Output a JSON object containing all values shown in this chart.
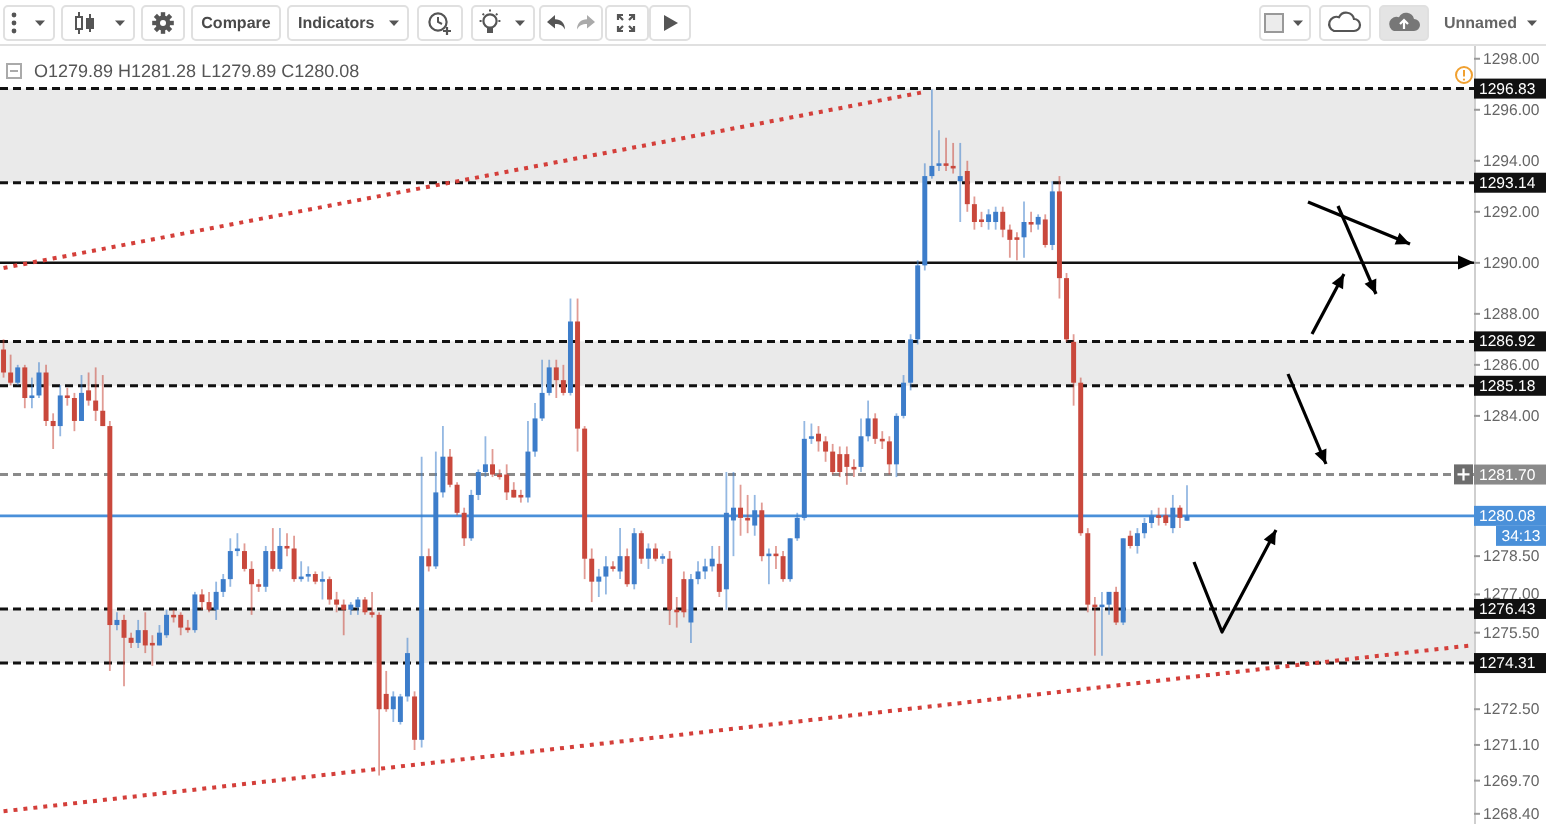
{
  "chart_data": {
    "type": "candlestick",
    "categories": [
      null,
      null,
      null,
      null,
      null,
      null,
      null,
      null,
      null,
      null,
      null,
      null,
      null,
      null,
      null,
      null,
      null,
      null,
      null,
      null,
      null,
      null,
      null,
      null,
      null,
      null,
      null,
      null,
      null,
      null,
      null,
      null,
      null,
      null,
      null,
      null,
      null,
      null,
      null,
      null,
      null,
      null,
      null,
      null,
      null,
      null,
      null,
      null,
      null,
      null,
      null,
      null,
      null,
      null,
      null,
      null,
      null,
      null,
      null,
      null,
      null,
      null,
      null,
      null,
      null,
      null,
      null,
      null,
      null,
      null,
      null,
      null,
      null,
      null,
      null,
      null,
      null,
      null,
      null,
      null,
      null,
      null,
      null,
      null,
      null,
      null,
      null,
      null,
      null,
      null,
      null,
      null,
      null,
      null,
      null,
      null,
      null,
      null,
      null,
      null,
      null,
      null,
      null,
      null,
      null,
      null,
      null,
      null,
      null,
      null,
      null,
      null,
      null,
      null,
      null,
      null,
      null,
      null,
      null,
      null,
      null,
      null,
      null,
      null,
      null,
      null,
      null,
      null,
      null,
      null,
      null,
      null,
      null,
      null,
      null,
      null,
      null,
      null,
      null,
      null,
      null,
      null,
      null,
      null,
      null,
      null,
      null,
      null,
      null,
      null,
      null,
      null,
      null,
      null,
      null,
      null,
      null,
      null,
      null,
      null,
      null,
      null,
      null,
      null,
      null,
      null,
      null,
      null,
      null,
      null,
      null,
      null,
      null,
      null,
      null,
      null,
      null,
      null,
      null,
      null,
      null,
      null,
      null,
      null,
      null,
      null,
      null,
      null,
      null,
      null,
      null,
      null,
      null,
      null,
      null,
      null,
      null,
      null,
      null,
      null,
      null,
      null,
      null,
      null,
      null,
      null,
      null,
      null
    ],
    "ohlc": [
      [
        1286.6,
        1287.0,
        1285.5,
        1285.7
      ],
      [
        1285.7,
        1286.4,
        1285.2,
        1285.3
      ],
      [
        1285.3,
        1286.0,
        1285.2,
        1285.9
      ],
      [
        1285.9,
        1286.0,
        1284.3,
        1284.7
      ],
      [
        1284.7,
        1285.5,
        1284.3,
        1284.8
      ],
      [
        1284.8,
        1286.1,
        1284.7,
        1285.7
      ],
      [
        1285.7,
        1286.0,
        1283.6,
        1283.8
      ],
      [
        1283.8,
        1284.1,
        1282.7,
        1283.6
      ],
      [
        1283.6,
        1285.2,
        1283.2,
        1284.8
      ],
      [
        1284.8,
        1285.1,
        1284.4,
        1284.7
      ],
      [
        1284.7,
        1284.9,
        1283.4,
        1283.8
      ],
      [
        1283.8,
        1285.6,
        1283.8,
        1284.9
      ],
      [
        1285.0,
        1285.7,
        1284.4,
        1284.6
      ],
      [
        1284.6,
        1285.9,
        1283.8,
        1284.2
      ],
      [
        1284.2,
        1285.6,
        1283.6,
        1283.6
      ],
      [
        1283.6,
        1283.8,
        1274.0,
        1275.8
      ],
      [
        1275.8,
        1276.3,
        1275.6,
        1276.0
      ],
      [
        1276.0,
        1276.2,
        1273.4,
        1275.3
      ],
      [
        1275.3,
        1275.5,
        1274.9,
        1275.1
      ],
      [
        1275.1,
        1276.0,
        1274.9,
        1275.6
      ],
      [
        1275.6,
        1276.3,
        1274.7,
        1275.0
      ],
      [
        1275.1,
        1275.4,
        1274.2,
        1275.0
      ],
      [
        1275.0,
        1275.8,
        1275.0,
        1275.5
      ],
      [
        1275.4,
        1276.4,
        1275.3,
        1276.2
      ],
      [
        1276.2,
        1276.4,
        1275.9,
        1276.1
      ],
      [
        1276.2,
        1276.3,
        1275.4,
        1275.7
      ],
      [
        1275.7,
        1276.0,
        1275.5,
        1275.6
      ],
      [
        1275.6,
        1277.1,
        1275.5,
        1277.0
      ],
      [
        1277.0,
        1277.2,
        1276.4,
        1276.7
      ],
      [
        1276.7,
        1277.1,
        1276.3,
        1276.4
      ],
      [
        1276.4,
        1277.5,
        1276.0,
        1277.1
      ],
      [
        1277.1,
        1277.8,
        1276.9,
        1277.6
      ],
      [
        1277.6,
        1279.2,
        1277.3,
        1278.7
      ],
      [
        1278.7,
        1279.4,
        1278.5,
        1278.8
      ],
      [
        1278.7,
        1279.0,
        1277.9,
        1278.0
      ],
      [
        1278.0,
        1278.3,
        1276.2,
        1277.4
      ],
      [
        1277.4,
        1277.6,
        1277.1,
        1277.3
      ],
      [
        1277.3,
        1278.9,
        1277.1,
        1278.7
      ],
      [
        1278.7,
        1279.6,
        1277.9,
        1278.0
      ],
      [
        1278.0,
        1279.6,
        1277.9,
        1278.9
      ],
      [
        1278.9,
        1279.4,
        1278.5,
        1278.8
      ],
      [
        1278.8,
        1279.3,
        1277.5,
        1277.6
      ],
      [
        1277.6,
        1278.3,
        1277.5,
        1277.7
      ],
      [
        1277.7,
        1278.1,
        1277.5,
        1277.8
      ],
      [
        1277.8,
        1277.9,
        1277.4,
        1277.5
      ],
      [
        1277.5,
        1277.9,
        1276.8,
        1277.6
      ],
      [
        1277.6,
        1277.7,
        1276.6,
        1276.8
      ],
      [
        1276.8,
        1277.1,
        1276.3,
        1276.6
      ],
      [
        1276.6,
        1276.8,
        1275.4,
        1276.4
      ],
      [
        1276.4,
        1276.7,
        1276.2,
        1276.6
      ],
      [
        1276.5,
        1276.9,
        1276.2,
        1276.8
      ],
      [
        1276.8,
        1276.9,
        1276.2,
        1276.3
      ],
      [
        1276.3,
        1277.1,
        1276.1,
        1276.2
      ],
      [
        1276.2,
        1276.3,
        1269.9,
        1272.5
      ],
      [
        1273.1,
        1274.0,
        1272.4,
        1272.5
      ],
      [
        1272.5,
        1273.2,
        1272.0,
        1273.0
      ],
      [
        1272.0,
        1273.1,
        1271.9,
        1273.0
      ],
      [
        1273.0,
        1275.3,
        1272.8,
        1274.7
      ],
      [
        1273.0,
        1273.2,
        1270.9,
        1271.3
      ],
      [
        1271.3,
        1282.4,
        1271.0,
        1278.5
      ],
      [
        1278.5,
        1278.8,
        1277.9,
        1278.1
      ],
      [
        1278.1,
        1282.6,
        1278.0,
        1281.0
      ],
      [
        1281.0,
        1283.6,
        1280.8,
        1282.4
      ],
      [
        1282.4,
        1282.7,
        1281.2,
        1281.3
      ],
      [
        1281.3,
        1281.4,
        1280.1,
        1280.2
      ],
      [
        1280.2,
        1280.4,
        1278.9,
        1279.2
      ],
      [
        1279.2,
        1281.1,
        1279.1,
        1280.9
      ],
      [
        1280.9,
        1281.9,
        1280.7,
        1281.8
      ],
      [
        1281.8,
        1283.2,
        1281.6,
        1282.1
      ],
      [
        1282.1,
        1282.7,
        1281.6,
        1281.7
      ],
      [
        1281.7,
        1281.9,
        1281.5,
        1281.6
      ],
      [
        1281.7,
        1282.1,
        1280.7,
        1281.0
      ],
      [
        1281.1,
        1281.4,
        1280.8,
        1280.8
      ],
      [
        1280.9,
        1281.1,
        1280.6,
        1280.8
      ],
      [
        1280.8,
        1283.8,
        1280.6,
        1282.6
      ],
      [
        1282.6,
        1284.5,
        1282.4,
        1283.9
      ],
      [
        1283.9,
        1286.2,
        1283.8,
        1284.9
      ],
      [
        1284.9,
        1286.2,
        1284.8,
        1285.9
      ],
      [
        1285.9,
        1286.2,
        1284.7,
        1285.4
      ],
      [
        1285.4,
        1286.0,
        1284.8,
        1284.9
      ],
      [
        1284.9,
        1288.6,
        1284.8,
        1287.7
      ],
      [
        1287.7,
        1288.6,
        1282.6,
        1283.5
      ],
      [
        1283.5,
        1283.6,
        1277.6,
        1278.4
      ],
      [
        1278.4,
        1278.8,
        1276.7,
        1277.5
      ],
      [
        1277.5,
        1278.0,
        1276.9,
        1277.7
      ],
      [
        1277.7,
        1278.5,
        1277.0,
        1278.1
      ],
      [
        1278.1,
        1278.3,
        1277.9,
        1278.0
      ],
      [
        1277.9,
        1279.6,
        1277.6,
        1278.5
      ],
      [
        1278.5,
        1278.8,
        1277.3,
        1277.4
      ],
      [
        1277.4,
        1279.6,
        1277.2,
        1279.4
      ],
      [
        1279.4,
        1279.5,
        1278.2,
        1278.4
      ],
      [
        1278.4,
        1279.0,
        1278.0,
        1278.8
      ],
      [
        1278.8,
        1279.0,
        1278.3,
        1278.4
      ],
      [
        1278.4,
        1278.6,
        1278.2,
        1278.5
      ],
      [
        1278.4,
        1278.7,
        1275.8,
        1276.4
      ],
      [
        1276.4,
        1276.9,
        1275.7,
        1276.3
      ],
      [
        1277.6,
        1277.9,
        1276.1,
        1276.3
      ],
      [
        1275.9,
        1277.8,
        1275.1,
        1277.6
      ],
      [
        1277.6,
        1278.3,
        1277.4,
        1277.9
      ],
      [
        1277.9,
        1278.4,
        1277.6,
        1278.1
      ],
      [
        1278.1,
        1278.9,
        1277.9,
        1278.4
      ],
      [
        1278.2,
        1278.9,
        1276.9,
        1277.1
      ],
      [
        1277.2,
        1281.8,
        1276.4,
        1280.2
      ],
      [
        1279.9,
        1281.8,
        1278.5,
        1280.4
      ],
      [
        1280.4,
        1281.3,
        1279.3,
        1280.0
      ],
      [
        1280.0,
        1280.9,
        1279.4,
        1279.9
      ],
      [
        1279.7,
        1280.9,
        1279.3,
        1280.3
      ],
      [
        1280.3,
        1280.6,
        1278.3,
        1278.5
      ],
      [
        1278.5,
        1278.8,
        1277.4,
        1278.6
      ],
      [
        1278.6,
        1278.9,
        1278.0,
        1278.5
      ],
      [
        1278.5,
        1278.7,
        1277.5,
        1277.6
      ],
      [
        1277.6,
        1279.2,
        1277.5,
        1279.2
      ],
      [
        1279.2,
        1280.2,
        1279.1,
        1280.0
      ],
      [
        1280.0,
        1283.8,
        1279.9,
        1283.1
      ],
      [
        1283.1,
        1283.7,
        1282.9,
        1283.2
      ],
      [
        1283.3,
        1283.6,
        1282.6,
        1283.0
      ],
      [
        1283.0,
        1283.2,
        1282.2,
        1282.6
      ],
      [
        1282.6,
        1282.9,
        1281.7,
        1281.8
      ],
      [
        1282.5,
        1282.8,
        1281.6,
        1281.8
      ],
      [
        1282.5,
        1282.8,
        1281.3,
        1282.0
      ],
      [
        1282.0,
        1282.3,
        1281.6,
        1281.9
      ],
      [
        1282.0,
        1283.9,
        1281.8,
        1283.2
      ],
      [
        1283.2,
        1284.6,
        1283.0,
        1283.9
      ],
      [
        1283.9,
        1284.1,
        1282.9,
        1283.1
      ],
      [
        1283.1,
        1283.4,
        1282.7,
        1283.0
      ],
      [
        1283.0,
        1283.2,
        1281.7,
        1282.1
      ],
      [
        1282.1,
        1284.1,
        1281.6,
        1284.0
      ],
      [
        1284.0,
        1285.6,
        1283.9,
        1285.3
      ],
      [
        1285.3,
        1287.2,
        1285.0,
        1287.0
      ],
      [
        1287.0,
        1290.1,
        1286.8,
        1289.9
      ],
      [
        1289.9,
        1293.9,
        1289.7,
        1293.4
      ],
      [
        1293.4,
        1296.8,
        1293.3,
        1293.8
      ],
      [
        1293.8,
        1295.2,
        1293.6,
        1293.9
      ],
      [
        1293.9,
        1294.9,
        1293.6,
        1293.8
      ],
      [
        1293.8,
        1294.7,
        1293.5,
        1293.7
      ],
      [
        1293.2,
        1294.7,
        1291.6,
        1293.4
      ],
      [
        1293.6,
        1294.0,
        1292.0,
        1292.3
      ],
      [
        1292.3,
        1292.6,
        1291.3,
        1291.6
      ],
      [
        1291.7,
        1292.0,
        1291.4,
        1291.6
      ],
      [
        1291.6,
        1292.1,
        1291.3,
        1291.9
      ],
      [
        1291.6,
        1292.2,
        1291.3,
        1292.0
      ],
      [
        1292.0,
        1292.2,
        1291.0,
        1291.3
      ],
      [
        1291.3,
        1291.5,
        1290.2,
        1290.9
      ],
      [
        1291.0,
        1291.2,
        1290.1,
        1290.9
      ],
      [
        1291.0,
        1292.4,
        1290.2,
        1291.6
      ],
      [
        1291.6,
        1292.0,
        1291.2,
        1291.5
      ],
      [
        1291.5,
        1291.9,
        1291.3,
        1291.8
      ],
      [
        1291.7,
        1291.9,
        1290.6,
        1290.7
      ],
      [
        1290.7,
        1293.2,
        1290.5,
        1292.8
      ],
      [
        1292.8,
        1293.4,
        1288.6,
        1289.4
      ],
      [
        1289.4,
        1289.6,
        1286.9,
        1287.0
      ],
      [
        1286.9,
        1287.2,
        1284.4,
        1285.3
      ],
      [
        1285.3,
        1285.5,
        1279.3,
        1279.4
      ],
      [
        1279.4,
        1279.6,
        1276.3,
        1276.6
      ],
      [
        1276.6,
        1276.9,
        1274.6,
        1276.5
      ],
      [
        1276.5,
        1277.1,
        1274.6,
        1276.6
      ],
      [
        1276.6,
        1277.1,
        1276.2,
        1277.1
      ],
      [
        1277.1,
        1277.3,
        1275.8,
        1275.9
      ],
      [
        1275.9,
        1279.2,
        1275.8,
        1279.2
      ],
      [
        1279.3,
        1279.5,
        1278.8,
        1278.9
      ],
      [
        1278.9,
        1279.6,
        1278.6,
        1279.4
      ],
      [
        1279.4,
        1280.0,
        1279.2,
        1279.8
      ],
      [
        1279.8,
        1280.3,
        1279.6,
        1280.1
      ],
      [
        1280.1,
        1280.4,
        1279.7,
        1280.0
      ],
      [
        1280.1,
        1280.4,
        1279.7,
        1279.8
      ],
      [
        1279.6,
        1280.9,
        1279.4,
        1280.4
      ],
      [
        1280.4,
        1280.5,
        1279.6,
        1280.0
      ],
      [
        1279.89,
        1281.28,
        1279.89,
        1280.08
      ],
      null,
      null,
      null,
      null,
      null,
      null,
      null,
      null,
      null,
      null,
      null,
      null,
      null,
      null,
      null,
      null,
      null,
      null,
      null,
      null,
      null,
      null,
      null,
      null,
      null,
      null,
      null,
      null,
      null,
      null,
      null,
      null,
      null,
      null,
      null,
      null,
      null,
      null,
      null,
      null
    ],
    "colors": [
      "#c9483c",
      "#c9483c",
      "#3d7dca",
      "#c9483c",
      "#3d7dca",
      "#3d7dca",
      "#c9483c",
      "#c9483c",
      "#3d7dca",
      "#c9483c",
      "#c9483c",
      "#3d7dca",
      "#c9483c",
      "#c9483c",
      "#c9483c",
      "#c9483c",
      "#3d7dca",
      "#c9483c",
      "#c9483c",
      "#3d7dca",
      "#c9483c",
      "#c9483c",
      "#3d7dca",
      "#3d7dca",
      "#c9483c",
      "#c9483c",
      "#c9483c",
      "#3d7dca",
      "#c9483c",
      "#c9483c",
      "#3d7dca",
      "#3d7dca",
      "#3d7dca",
      "#3d7dca",
      "#c9483c",
      "#c9483c",
      "#c9483c",
      "#3d7dca",
      "#c9483c",
      "#3d7dca",
      "#c9483c",
      "#c9483c",
      "#3d7dca",
      "#3d7dca",
      "#c9483c",
      "#3d7dca",
      "#c9483c",
      "#c9483c",
      "#c9483c",
      "#3d7dca",
      "#3d7dca",
      "#c9483c",
      "#c9483c",
      "#c9483c",
      "#c9483c",
      "#3d7dca",
      "#3d7dca",
      "#3d7dca",
      "#c9483c",
      "#3d7dca",
      "#c9483c",
      "#3d7dca",
      "#3d7dca",
      "#c9483c",
      "#c9483c",
      "#c9483c",
      "#3d7dca",
      "#3d7dca",
      "#3d7dca",
      "#c9483c",
      "#c9483c",
      "#c9483c",
      "#c9483c",
      "#c9483c",
      "#3d7dca",
      "#3d7dca",
      "#3d7dca",
      "#3d7dca",
      "#c9483c",
      "#c9483c",
      "#3d7dca",
      "#c9483c",
      "#c9483c",
      "#c9483c",
      "#3d7dca",
      "#3d7dca",
      "#c9483c",
      "#3d7dca",
      "#c9483c",
      "#3d7dca",
      "#c9483c",
      "#3d7dca",
      "#c9483c",
      "#3d7dca",
      "#c9483c",
      "#c9483c",
      "#c9483c",
      "#3d7dca",
      "#3d7dca",
      "#3d7dca",
      "#3d7dca",
      "#c9483c",
      "#3d7dca",
      "#3d7dca",
      "#c9483c",
      "#c9483c",
      "#3d7dca",
      "#c9483c",
      "#3d7dca",
      "#c9483c",
      "#c9483c",
      "#3d7dca",
      "#3d7dca",
      "#3d7dca",
      "#3d7dca",
      "#c9483c",
      "#c9483c",
      "#c9483c",
      "#c9483c",
      "#c9483c",
      "#c9483c",
      "#3d7dca",
      "#3d7dca",
      "#c9483c",
      "#c9483c",
      "#c9483c",
      "#3d7dca",
      "#3d7dca",
      "#3d7dca",
      "#3d7dca",
      "#3d7dca",
      "#3d7dca",
      "#3d7dca",
      "#c9483c",
      "#c9483c",
      "#3d7dca",
      "#c9483c",
      "#c9483c",
      "#c9483c",
      "#3d7dca",
      "#3d7dca",
      "#c9483c",
      "#c9483c",
      "#c9483c",
      "#3d7dca",
      "#c9483c",
      "#3d7dca",
      "#c9483c",
      "#3d7dca",
      "#c9483c",
      "#c9483c",
      "#c9483c",
      "#c9483c",
      "#c9483c",
      "#c9483c",
      "#3d7dca",
      "#3d7dca",
      "#c9483c",
      "#3d7dca",
      "#c9483c",
      "#3d7dca",
      "#3d7dca",
      "#3d7dca",
      "#c9483c",
      "#c9483c",
      "#3d7dca",
      "#c9483c",
      "#3d7dca",
      null,
      null,
      null,
      null,
      null,
      null,
      null,
      null,
      null,
      null,
      null,
      null,
      null,
      null,
      null,
      null,
      null,
      null,
      null,
      null,
      null,
      null,
      null,
      null,
      null,
      null,
      null,
      null,
      null,
      null,
      null,
      null,
      null,
      null,
      null,
      null,
      null,
      null,
      null,
      null
    ],
    "series": [
      {
        "type": "line",
        "color": "#d43f3a",
        "values": [
          1289.8,
          null,
          null,
          null,
          null,
          null,
          null,
          null,
          null,
          null,
          null,
          null,
          null,
          null,
          null,
          null,
          null,
          null,
          null,
          null,
          null,
          null,
          null,
          null,
          null,
          null,
          null,
          null,
          null,
          null,
          null,
          null,
          null,
          null,
          null,
          null,
          null,
          null,
          null,
          null,
          null,
          null,
          null,
          null,
          null,
          null,
          null,
          null,
          null,
          null,
          null,
          null,
          null,
          null,
          null,
          null,
          null,
          null,
          null,
          null,
          null,
          null,
          null,
          null,
          null,
          null,
          null,
          null,
          null,
          null,
          null,
          null,
          null,
          null,
          null,
          null,
          null,
          null,
          null,
          null,
          null,
          null,
          null,
          null,
          null,
          null,
          null,
          null,
          null,
          null,
          null,
          null,
          null,
          null,
          null,
          null,
          null,
          null,
          null,
          null,
          null,
          null,
          null,
          null,
          null,
          null,
          null,
          null,
          null,
          null,
          null,
          null,
          null,
          null,
          null,
          null,
          null,
          null,
          null,
          null,
          null,
          null,
          null,
          null,
          null,
          null,
          null,
          null,
          null,
          null,
          1296.7,
          null,
          null,
          null,
          null,
          null,
          null,
          null,
          null,
          null,
          null,
          null,
          null,
          null,
          null,
          null,
          null,
          null,
          null,
          null,
          null,
          null,
          null,
          null,
          null,
          null,
          null,
          null,
          null,
          null,
          null,
          null,
          null,
          null,
          null,
          null,
          null,
          null,
          null,
          null,
          null,
          null,
          null,
          null,
          null,
          null,
          null,
          null,
          null,
          null,
          null,
          null,
          null,
          null,
          null,
          null,
          null,
          null,
          null,
          null,
          null,
          null,
          null,
          null,
          null,
          null,
          null,
          null,
          null,
          null,
          null,
          null,
          null,
          null,
          null,
          null,
          null,
          null
        ]
      },
      {
        "type": "line",
        "color": "#d43f3a",
        "values": [
          1268.5,
          null,
          null,
          null,
          null,
          null,
          null,
          null,
          null,
          null,
          null,
          null,
          null,
          null,
          null,
          null,
          null,
          null,
          null,
          null,
          null,
          null,
          null,
          null,
          null,
          null,
          null,
          null,
          null,
          null,
          null,
          null,
          null,
          null,
          null,
          null,
          null,
          null,
          null,
          null,
          null,
          null,
          null,
          null,
          null,
          null,
          null,
          null,
          null,
          null,
          null,
          null,
          null,
          null,
          null,
          null,
          null,
          null,
          null,
          null,
          null,
          null,
          null,
          null,
          null,
          null,
          null,
          null,
          null,
          null,
          null,
          null,
          null,
          null,
          null,
          null,
          null,
          null,
          null,
          null,
          null,
          null,
          null,
          null,
          null,
          null,
          null,
          null,
          null,
          null,
          null,
          null,
          null,
          null,
          null,
          null,
          null,
          null,
          null,
          null,
          null,
          null,
          null,
          null,
          null,
          null,
          null,
          null,
          null,
          null,
          null,
          null,
          null,
          null,
          null,
          null,
          null,
          null,
          null,
          null,
          null,
          null,
          null,
          null,
          null,
          null,
          null,
          null,
          null,
          null,
          null,
          null,
          null,
          null,
          null,
          null,
          null,
          null,
          null,
          null,
          null,
          null,
          null,
          null,
          null,
          null,
          null,
          null,
          null,
          null,
          null,
          null,
          null,
          null,
          null,
          null,
          null,
          null,
          null,
          null,
          null,
          null,
          null,
          null,
          null,
          null,
          null,
          null,
          null,
          null,
          null,
          null,
          null,
          null,
          null,
          null,
          null,
          null,
          null,
          null,
          null,
          null,
          null,
          null,
          null,
          null,
          null,
          null,
          null,
          null,
          null,
          null,
          null,
          null,
          null,
          null,
          null,
          null,
          null,
          null,
          null,
          null,
          null,
          null,
          null,
          null,
          null,
          1275.0
        ]
      }
    ],
    "line_style": "dotted",
    "ylim": [
      1268.0,
      1298.5
    ],
    "yticks": [
      {
        "value": 1298,
        "label": "1298.00"
      },
      {
        "value": 1296,
        "label": "1296.00"
      },
      {
        "value": 1294,
        "label": "1294.00"
      },
      {
        "value": 1292,
        "label": "1292.00"
      },
      {
        "value": 1290,
        "label": "1290.00"
      },
      {
        "value": 1288,
        "label": "1288.00"
      },
      {
        "value": 1286,
        "label": "1286.00"
      },
      {
        "value": 1284,
        "label": "1284.00"
      },
      {
        "value": 1278.5,
        "label": "1278.50"
      },
      {
        "value": 1277,
        "label": "1277.00"
      },
      {
        "value": 1275.5,
        "label": "1275.50"
      },
      {
        "value": 1272.5,
        "label": "1272.50"
      },
      {
        "value": 1271.1,
        "label": "1271.10"
      },
      {
        "value": 1269.7,
        "label": "1269.70"
      },
      {
        "value": 1268.4,
        "label": "1268.40"
      }
    ],
    "bands": [
      {
        "axis": "y",
        "from": 1293.14,
        "to": 1296.83,
        "color": "#e6e6e6"
      },
      {
        "axis": "y",
        "from": 1285.18,
        "to": 1286.92,
        "color": "#e6e6e6"
      },
      {
        "axis": "y",
        "from": 1274.31,
        "to": 1276.43,
        "color": "#e6e6e6"
      }
    ],
    "ref_lines": [
      {
        "axis": "y",
        "value": 1296.83,
        "label": "1296.83",
        "color": "#111111",
        "line_style": "dashed"
      },
      {
        "axis": "y",
        "value": 1293.14,
        "label": "1293.14",
        "color": "#111111",
        "line_style": "dashed"
      },
      {
        "axis": "y",
        "value": 1286.92,
        "label": "1286.92",
        "color": "#111111",
        "line_style": "dashed"
      },
      {
        "axis": "y",
        "value": 1285.18,
        "label": "1285.18",
        "color": "#111111",
        "line_style": "dashed"
      },
      {
        "axis": "y",
        "value": 1276.43,
        "label": "1276.43",
        "color": "#111111",
        "line_style": "dashed"
      },
      {
        "axis": "y",
        "value": 1274.31,
        "label": "1274.31",
        "color": "#111111",
        "line_style": "dashed"
      },
      {
        "axis": "y",
        "value": 1290,
        "color": "#111111",
        "line_style": "solid"
      },
      {
        "axis": "y",
        "value": 1281.7,
        "label": "1281.70",
        "color": "#8a8a8a",
        "line_style": "dashed"
      },
      {
        "axis": "y",
        "value": 1280.08,
        "label": "1280.08",
        "color": "#4a90d9",
        "line_style": "solid"
      }
    ],
    "annotations": [
      "O1279.89 H1281.28 L1279.89 C1280.08",
      "34:13",
      "Compare",
      "Indicators",
      "Unnamed"
    ]
  }
}
